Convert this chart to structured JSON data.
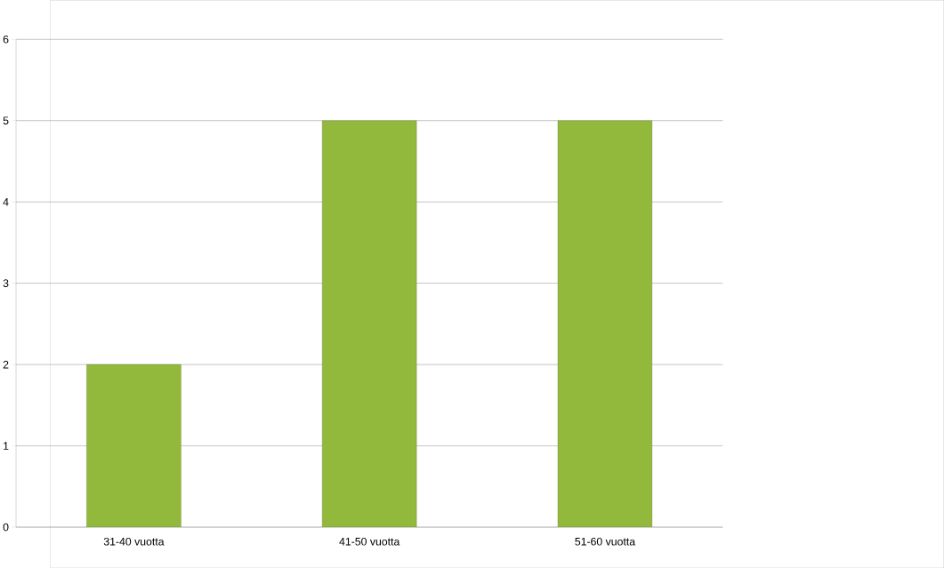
{
  "chart_data": {
    "type": "bar",
    "categories": [
      "31-40 vuotta",
      "41-50 vuotta",
      "51-60 vuotta"
    ],
    "values": [
      2,
      5,
      5
    ],
    "color": "#92b83c",
    "ylim": [
      0,
      6
    ],
    "yticks": [
      0,
      1,
      2,
      3,
      4,
      5,
      6
    ],
    "grid": "y"
  }
}
